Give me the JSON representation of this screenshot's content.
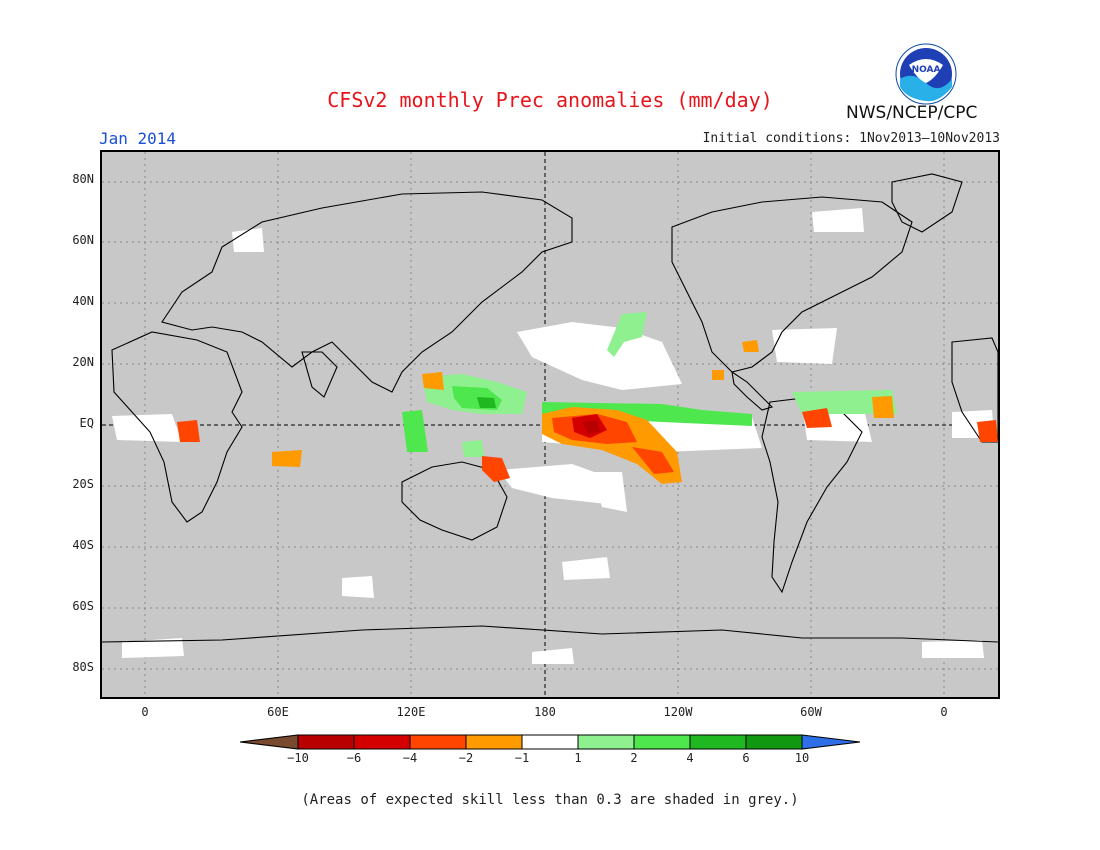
{
  "header": {
    "title": "CFSv2 monthly Prec anomalies (mm/day)",
    "month": "Jan 2014",
    "initial_conditions": "Initial conditions: 1Nov2013–10Nov2013",
    "agency": "NWS/NCEP/CPC",
    "logo_text": "NOAA"
  },
  "map": {
    "lat_labels": [
      "80N",
      "60N",
      "40N",
      "20N",
      "EQ",
      "20S",
      "40S",
      "60S",
      "80S"
    ],
    "lon_labels": [
      "0",
      "60E",
      "120E",
      "180",
      "120W",
      "60W",
      "0"
    ],
    "background_color": "#c8c8c8"
  },
  "colorbar": {
    "labels": [
      "−10",
      "−6",
      "−4",
      "−2",
      "−1",
      "1",
      "2",
      "4",
      "6",
      "10"
    ],
    "colors": {
      "below_-10": "#7a4a2e",
      "-10_-6": "#b80000",
      "-6_-4": "#d40000",
      "-4_-2": "#ff4500",
      "-2_-1": "#ff9a00",
      "-1_1": "#ffffff",
      "1_2": "#8ef08e",
      "2_4": "#4ee84e",
      "4_6": "#20b820",
      "6_10": "#109810",
      "above_10": "#2e6fe8"
    }
  },
  "footnote": "(Areas of expected skill less than 0.3 are shaded in grey.)"
}
